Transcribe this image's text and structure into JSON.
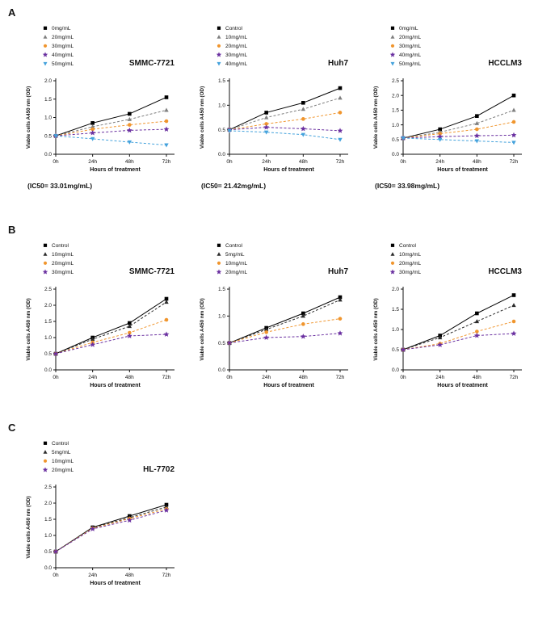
{
  "page": {
    "background": "#ffffff"
  },
  "panel_labels": [
    "A",
    "B",
    "C"
  ],
  "colors": {
    "black": "#000000",
    "gray": "#7f7f7f",
    "dark": "#2b2b2b",
    "orange": "#f0952d",
    "purple": "#6a30a0",
    "blue": "#44a2dc"
  },
  "chart_data": [
    {
      "panel": "A",
      "type": "line",
      "title": "SMMC-7721",
      "caption": "(IC50= 33.01mg/mL)",
      "xlabel": "Hours of treatment",
      "ylabel": "Viable cells A450 nm (OD)",
      "categories": [
        "0h",
        "24h",
        "48h",
        "72h"
      ],
      "ylim": [
        0,
        2.0
      ],
      "yticks": [
        0,
        0.5,
        1.0,
        1.5,
        2.0
      ],
      "legend_position": "top-left",
      "grid": false,
      "series": [
        {
          "name": "0mg/mL",
          "marker": "square",
          "color": "#000000",
          "dashed": false,
          "values": [
            0.5,
            0.85,
            1.1,
            1.55
          ]
        },
        {
          "name": "20mg/mL",
          "marker": "triangle",
          "color": "#7f7f7f",
          "dashed": true,
          "values": [
            0.5,
            0.75,
            0.95,
            1.2
          ]
        },
        {
          "name": "30mg/mL",
          "marker": "circle",
          "color": "#f0952d",
          "dashed": true,
          "values": [
            0.5,
            0.68,
            0.8,
            0.9
          ]
        },
        {
          "name": "40mg/mL",
          "marker": "star",
          "color": "#6a30a0",
          "dashed": true,
          "values": [
            0.5,
            0.58,
            0.65,
            0.68
          ]
        },
        {
          "name": "50mg/mL",
          "marker": "triangle-down",
          "color": "#44a2dc",
          "dashed": true,
          "values": [
            0.5,
            0.42,
            0.33,
            0.25
          ]
        }
      ]
    },
    {
      "panel": "A",
      "type": "line",
      "title": "Huh7",
      "caption": "(IC50= 21.42mg/mL)",
      "xlabel": "Hours of treatment",
      "ylabel": "Viable cells A450 nm (OD)",
      "categories": [
        "0h",
        "24h",
        "48h",
        "72h"
      ],
      "ylim": [
        0,
        1.5
      ],
      "yticks": [
        0,
        0.5,
        1.0,
        1.5
      ],
      "legend_position": "top-left",
      "grid": false,
      "series": [
        {
          "name": "Control",
          "marker": "square",
          "color": "#000000",
          "dashed": false,
          "values": [
            0.5,
            0.85,
            1.05,
            1.35
          ]
        },
        {
          "name": "10mg/mL",
          "marker": "triangle",
          "color": "#7f7f7f",
          "dashed": true,
          "values": [
            0.5,
            0.75,
            0.92,
            1.15
          ]
        },
        {
          "name": "20mg/mL",
          "marker": "circle",
          "color": "#f0952d",
          "dashed": true,
          "values": [
            0.5,
            0.62,
            0.72,
            0.85
          ]
        },
        {
          "name": "30mg/mL",
          "marker": "star",
          "color": "#6a30a0",
          "dashed": true,
          "values": [
            0.5,
            0.55,
            0.52,
            0.48
          ]
        },
        {
          "name": "40mg/mL",
          "marker": "triangle-down",
          "color": "#44a2dc",
          "dashed": true,
          "values": [
            0.48,
            0.45,
            0.4,
            0.3
          ]
        }
      ]
    },
    {
      "panel": "A",
      "type": "line",
      "title": "HCCLM3",
      "caption": "(IC50= 33.98mg/mL)",
      "xlabel": "Hours of treatment",
      "ylabel": "Viable cells A450 nm (OD)",
      "categories": [
        "0h",
        "24h",
        "48h",
        "72h"
      ],
      "ylim": [
        0,
        2.5
      ],
      "yticks": [
        0,
        0.5,
        1.0,
        1.5,
        2.0,
        2.5
      ],
      "legend_position": "top-left",
      "grid": false,
      "series": [
        {
          "name": "0mg/mL",
          "marker": "square",
          "color": "#000000",
          "dashed": false,
          "values": [
            0.55,
            0.85,
            1.3,
            2.0
          ]
        },
        {
          "name": "20mg/mL",
          "marker": "triangle",
          "color": "#7f7f7f",
          "dashed": true,
          "values": [
            0.55,
            0.75,
            1.05,
            1.5
          ]
        },
        {
          "name": "30mg/mL",
          "marker": "circle",
          "color": "#f0952d",
          "dashed": true,
          "values": [
            0.55,
            0.7,
            0.85,
            1.1
          ]
        },
        {
          "name": "40mg/mL",
          "marker": "star",
          "color": "#6a30a0",
          "dashed": true,
          "values": [
            0.55,
            0.6,
            0.63,
            0.65
          ]
        },
        {
          "name": "50mg/mL",
          "marker": "triangle-down",
          "color": "#44a2dc",
          "dashed": true,
          "values": [
            0.55,
            0.5,
            0.45,
            0.4
          ]
        }
      ]
    },
    {
      "panel": "B",
      "type": "line",
      "title": "SMMC-7721",
      "caption": "",
      "xlabel": "Hours of treatment",
      "ylabel": "Viable cells A450 nm (OD)",
      "categories": [
        "0h",
        "24h",
        "48h",
        "72h"
      ],
      "ylim": [
        0,
        2.5
      ],
      "yticks": [
        0,
        0.5,
        1.0,
        1.5,
        2.0,
        2.5
      ],
      "legend_position": "top-left",
      "grid": false,
      "series": [
        {
          "name": "Control",
          "marker": "square",
          "color": "#000000",
          "dashed": false,
          "values": [
            0.5,
            1.0,
            1.45,
            2.2
          ]
        },
        {
          "name": "10mg/mL",
          "marker": "triangle",
          "color": "#2b2b2b",
          "dashed": true,
          "values": [
            0.5,
            0.95,
            1.35,
            2.1
          ]
        },
        {
          "name": "20mg/mL",
          "marker": "circle",
          "color": "#f0952d",
          "dashed": true,
          "values": [
            0.5,
            0.85,
            1.15,
            1.55
          ]
        },
        {
          "name": "30mg/mL",
          "marker": "star",
          "color": "#6a30a0",
          "dashed": true,
          "values": [
            0.5,
            0.78,
            1.05,
            1.1
          ]
        }
      ]
    },
    {
      "panel": "B",
      "type": "line",
      "title": "Huh7",
      "caption": "",
      "xlabel": "Hours of treatment",
      "ylabel": "Viable cells A450 nm (OD)",
      "categories": [
        "0h",
        "24h",
        "48h",
        "72h"
      ],
      "ylim": [
        0,
        1.5
      ],
      "yticks": [
        0,
        0.5,
        1.0,
        1.5
      ],
      "legend_position": "top-left",
      "grid": false,
      "series": [
        {
          "name": "Control",
          "marker": "square",
          "color": "#000000",
          "dashed": false,
          "values": [
            0.5,
            0.78,
            1.05,
            1.35
          ]
        },
        {
          "name": "5mg/mL",
          "marker": "triangle",
          "color": "#2b2b2b",
          "dashed": true,
          "values": [
            0.5,
            0.75,
            1.0,
            1.3
          ]
        },
        {
          "name": "10mg/mL",
          "marker": "circle",
          "color": "#f0952d",
          "dashed": true,
          "values": [
            0.5,
            0.7,
            0.85,
            0.95
          ]
        },
        {
          "name": "20mg/mL",
          "marker": "star",
          "color": "#6a30a0",
          "dashed": true,
          "values": [
            0.5,
            0.6,
            0.62,
            0.68
          ]
        }
      ]
    },
    {
      "panel": "B",
      "type": "line",
      "title": "HCCLM3",
      "caption": "",
      "xlabel": "Hours of treatment",
      "ylabel": "Viable cells A450 nm (OD)",
      "categories": [
        "0h",
        "24h",
        "48h",
        "72h"
      ],
      "ylim": [
        0,
        2.0
      ],
      "yticks": [
        0,
        0.5,
        1.0,
        1.5,
        2.0
      ],
      "legend_position": "top-left",
      "grid": false,
      "series": [
        {
          "name": "Control",
          "marker": "square",
          "color": "#000000",
          "dashed": false,
          "values": [
            0.5,
            0.85,
            1.4,
            1.85
          ]
        },
        {
          "name": "10mg/mL",
          "marker": "triangle",
          "color": "#2b2b2b",
          "dashed": true,
          "values": [
            0.5,
            0.8,
            1.2,
            1.6
          ]
        },
        {
          "name": "20mg/mL",
          "marker": "circle",
          "color": "#f0952d",
          "dashed": true,
          "values": [
            0.5,
            0.65,
            0.95,
            1.2
          ]
        },
        {
          "name": "30mg/mL",
          "marker": "star",
          "color": "#6a30a0",
          "dashed": true,
          "values": [
            0.5,
            0.62,
            0.85,
            0.9
          ]
        }
      ]
    },
    {
      "panel": "C",
      "type": "line",
      "title": "HL-7702",
      "caption": "",
      "xlabel": "Hours of treatment",
      "ylabel": "Viable cells A450 nm (OD)",
      "categories": [
        "0h",
        "24h",
        "48h",
        "72h"
      ],
      "ylim": [
        0,
        2.5
      ],
      "yticks": [
        0,
        0.5,
        1.0,
        1.5,
        2.0,
        2.5
      ],
      "legend_position": "top-left",
      "grid": false,
      "series": [
        {
          "name": "Control",
          "marker": "square",
          "color": "#000000",
          "dashed": false,
          "values": [
            0.5,
            1.25,
            1.6,
            1.95
          ]
        },
        {
          "name": "5mg/mL",
          "marker": "triangle",
          "color": "#2b2b2b",
          "dashed": true,
          "values": [
            0.5,
            1.24,
            1.55,
            1.88
          ]
        },
        {
          "name": "10mg/mL",
          "marker": "circle",
          "color": "#f0952d",
          "dashed": true,
          "values": [
            0.5,
            1.22,
            1.52,
            1.82
          ]
        },
        {
          "name": "20mg/mL",
          "marker": "star",
          "color": "#6a30a0",
          "dashed": true,
          "values": [
            0.5,
            1.2,
            1.47,
            1.78
          ]
        }
      ]
    }
  ]
}
